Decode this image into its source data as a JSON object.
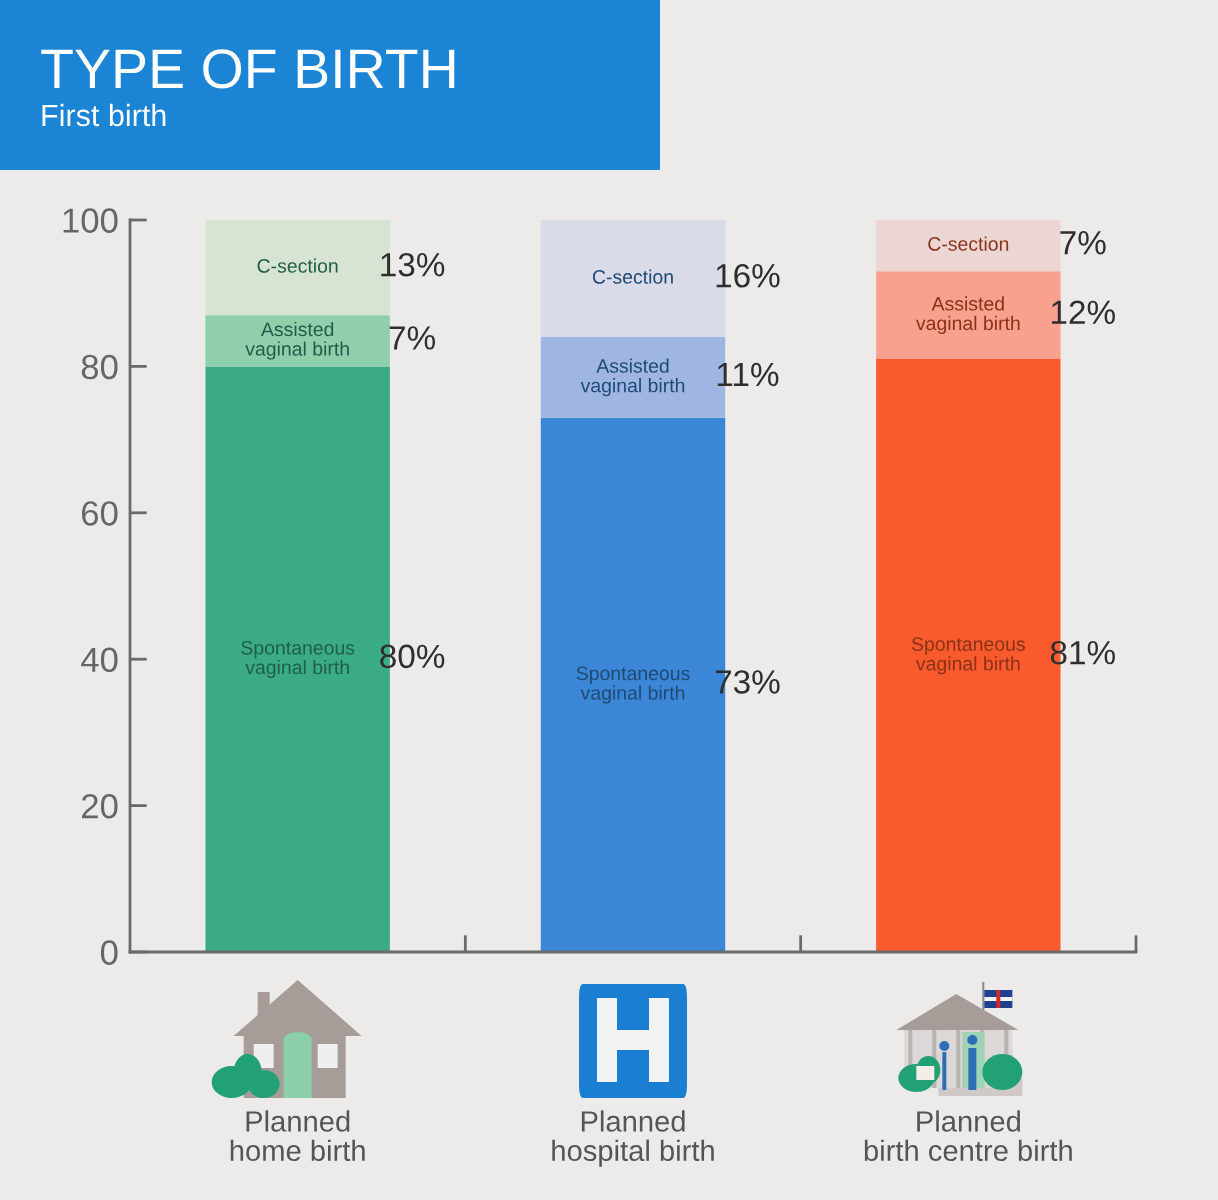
{
  "chart_data": {
    "type": "bar",
    "title": "TYPE OF BIRTH",
    "subtitle": "First birth",
    "stacked": true,
    "categories": [
      "Planned\nhome birth",
      "Planned\nhospital birth",
      "Planned\nbirth centre birth"
    ],
    "series": [
      {
        "name": "Spontaneous\nvaginal birth",
        "colors": [
          "#3aab84",
          "#3b86d6",
          "#fb5a2c"
        ],
        "values": [
          80,
          73,
          81
        ],
        "value_labels": [
          "80%",
          "73%",
          "81%"
        ]
      },
      {
        "name": "Assisted\nvaginal birth",
        "colors": [
          "#8fcfac",
          "#9fb6e2",
          "#f9a08e"
        ],
        "values": [
          7,
          11,
          12
        ],
        "value_labels": [
          "7%",
          "11%",
          "12%"
        ]
      },
      {
        "name": "C-section",
        "colors": [
          "#d7e4d3",
          "#d9dbe9",
          "#ecd6d3"
        ],
        "values": [
          13,
          16,
          7
        ],
        "value_labels": [
          "13%",
          "16%",
          "7%"
        ]
      }
    ],
    "ylim": [
      0,
      100
    ],
    "yticks": [
      0,
      20,
      40,
      60,
      80,
      100
    ]
  }
}
